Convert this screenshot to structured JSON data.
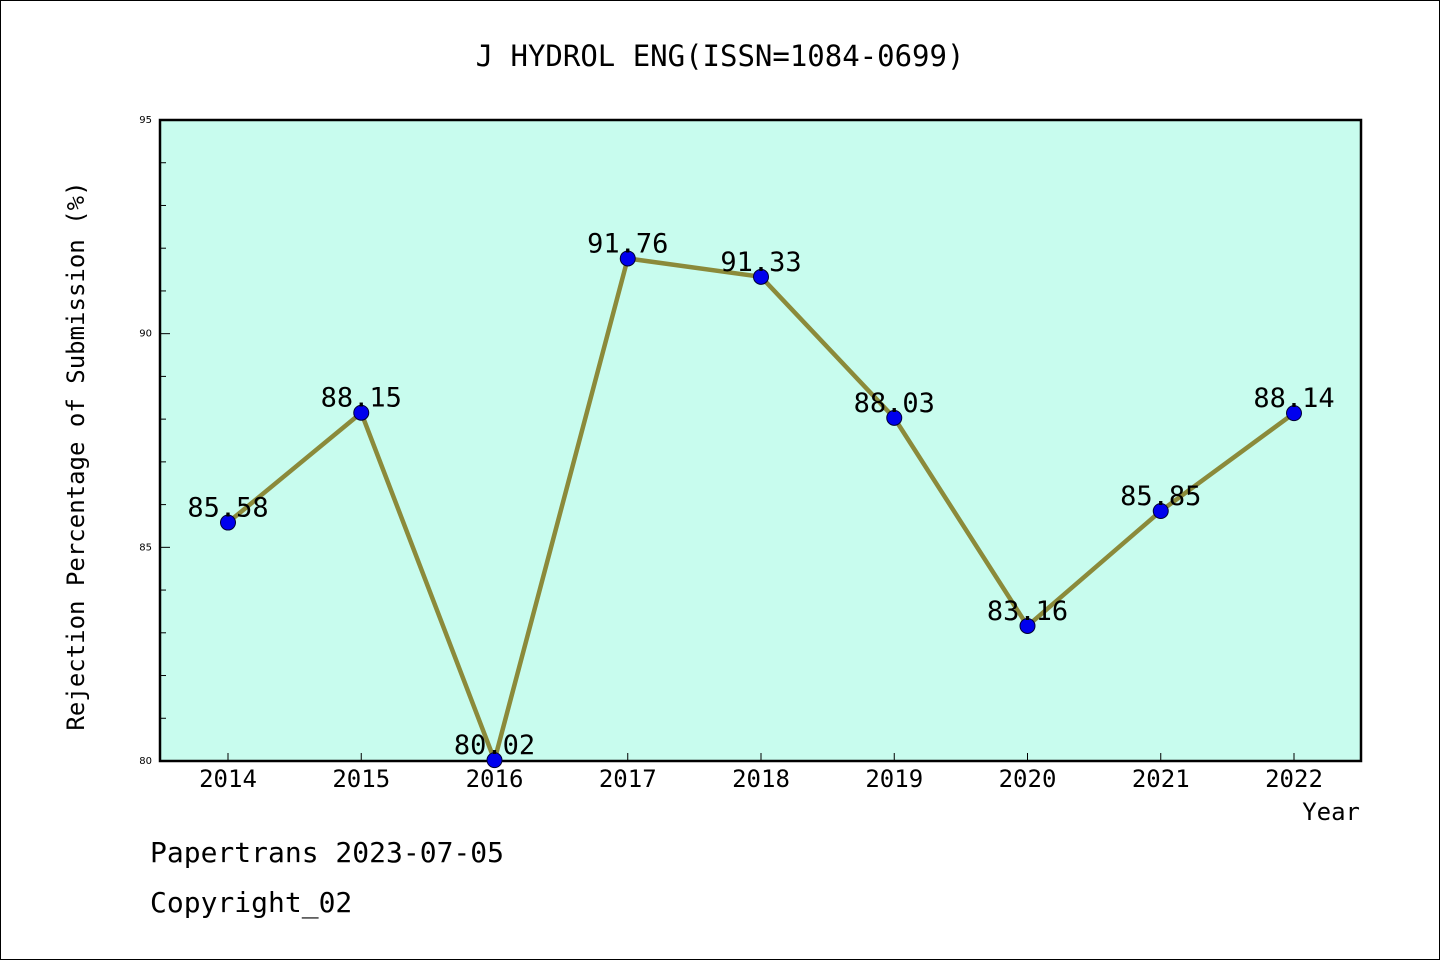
{
  "chart_data": {
    "type": "line",
    "title": "J HYDROL ENG(ISSN=1084-0699)",
    "xlabel": "Year",
    "ylabel": "Rejection Percentage of Submission (%)",
    "categories": [
      "2014",
      "2015",
      "2016",
      "2017",
      "2018",
      "2019",
      "2020",
      "2021",
      "2022"
    ],
    "values": [
      85.58,
      88.15,
      80.02,
      91.76,
      91.33,
      88.03,
      83.16,
      85.85,
      88.14
    ],
    "data_labels": [
      "85.58",
      "88.15",
      "80.02",
      "91.76",
      "91.33",
      "88.03",
      "83.16",
      "85.85",
      "88.14"
    ],
    "ylim": [
      80,
      95
    ],
    "yticks": [
      "80",
      "85",
      "90",
      "95"
    ],
    "grid": false,
    "colors": {
      "plot_background": "#c8fcee",
      "line": "#8b8a3a",
      "marker": "#0000ee"
    }
  },
  "footer": {
    "line1": "Papertrans 2023-07-05",
    "line2": "Copyright_02"
  }
}
